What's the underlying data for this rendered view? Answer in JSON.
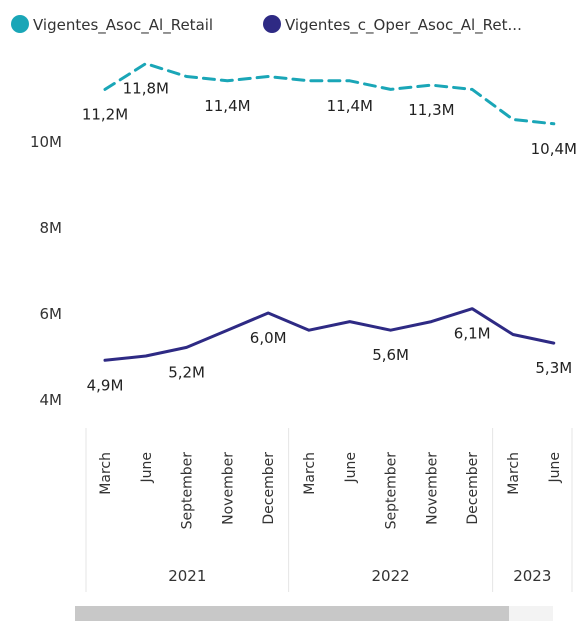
{
  "chart_data": {
    "type": "line",
    "legend_position": "top-left",
    "grid": false,
    "yticks": [
      "10M",
      "8M",
      "6M",
      "4M"
    ],
    "ytick_values": [
      10,
      8,
      6,
      4
    ],
    "ylim": [
      3.3,
      12.5
    ],
    "unit": "M",
    "x": [
      {
        "label": "March",
        "year": "2021"
      },
      {
        "label": "June",
        "year": "2021"
      },
      {
        "label": "September",
        "year": "2021"
      },
      {
        "label": "November",
        "year": "2021"
      },
      {
        "label": "December",
        "year": "2021"
      },
      {
        "label": "March",
        "year": "2022"
      },
      {
        "label": "June",
        "year": "2022"
      },
      {
        "label": "September",
        "year": "2022"
      },
      {
        "label": "November",
        "year": "2022"
      },
      {
        "label": "December",
        "year": "2022"
      },
      {
        "label": "March",
        "year": "2023"
      },
      {
        "label": "June",
        "year": "2023"
      }
    ],
    "years": [
      "2021",
      "2022",
      "2023"
    ],
    "series": [
      {
        "name": "Vigentes_Asoc_Al_Retail",
        "color": "#1aa6b7",
        "dash": true,
        "values": [
          11.2,
          11.8,
          11.5,
          11.4,
          11.5,
          11.4,
          11.4,
          11.2,
          11.3,
          11.2,
          10.5,
          10.4
        ],
        "labels": [
          {
            "i": 0,
            "text": "11,2M",
            "pos": "below"
          },
          {
            "i": 1,
            "text": "11,8M",
            "pos": "below"
          },
          {
            "i": 3,
            "text": "11,4M",
            "pos": "below"
          },
          {
            "i": 6,
            "text": "11,4M",
            "pos": "below"
          },
          {
            "i": 8,
            "text": "11,3M",
            "pos": "below"
          },
          {
            "i": 11,
            "text": "10,4M",
            "pos": "below"
          }
        ]
      },
      {
        "name": "Vigentes_c_Oper_Asoc_Al_Ret...",
        "color": "#2e2a84",
        "dash": false,
        "values": [
          4.9,
          5.0,
          5.2,
          5.6,
          6.0,
          5.6,
          5.8,
          5.6,
          5.8,
          6.1,
          5.5,
          5.3
        ],
        "labels": [
          {
            "i": 0,
            "text": "4,9M",
            "pos": "below"
          },
          {
            "i": 2,
            "text": "5,2M",
            "pos": "below"
          },
          {
            "i": 4,
            "text": "6,0M",
            "pos": "below"
          },
          {
            "i": 7,
            "text": "5,6M",
            "pos": "below"
          },
          {
            "i": 9,
            "text": "6,1M",
            "pos": "below"
          },
          {
            "i": 11,
            "text": "5,3M",
            "pos": "below"
          }
        ]
      }
    ]
  }
}
